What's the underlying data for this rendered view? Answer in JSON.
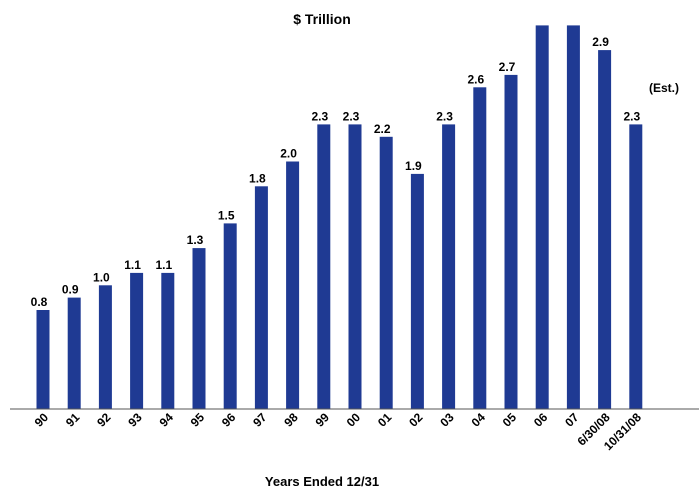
{
  "chart_data": {
    "type": "bar",
    "title": "$ Trillion",
    "xlabel": "Years Ended 12/31",
    "ylabel": "",
    "ylim": [
      0,
      3.4
    ],
    "grid": false,
    "legend": "none",
    "bar_color": "#1F3A93",
    "categories": [
      "90",
      "91",
      "92",
      "93",
      "94",
      "95",
      "96",
      "97",
      "98",
      "99",
      "00",
      "01",
      "02",
      "03",
      "04",
      "05",
      "06",
      "07",
      "6/30/08",
      "10/31/08"
    ],
    "values": [
      0.8,
      0.9,
      1.0,
      1.1,
      1.1,
      1.3,
      1.5,
      1.8,
      2.0,
      2.3,
      2.3,
      2.2,
      1.9,
      2.3,
      2.6,
      2.7,
      3.1,
      3.1,
      2.9,
      2.3
    ],
    "data_labels": [
      "0.8",
      "0.9",
      "1.0",
      "1.1",
      "1.1",
      "1.3",
      "1.5",
      "1.8",
      "2.0",
      "2.3",
      "2.3",
      "2.2",
      "1.9",
      "2.3",
      "2.6",
      "2.7",
      "",
      "",
      "2.9",
      "2.3"
    ],
    "annotation": "(Est.)"
  }
}
